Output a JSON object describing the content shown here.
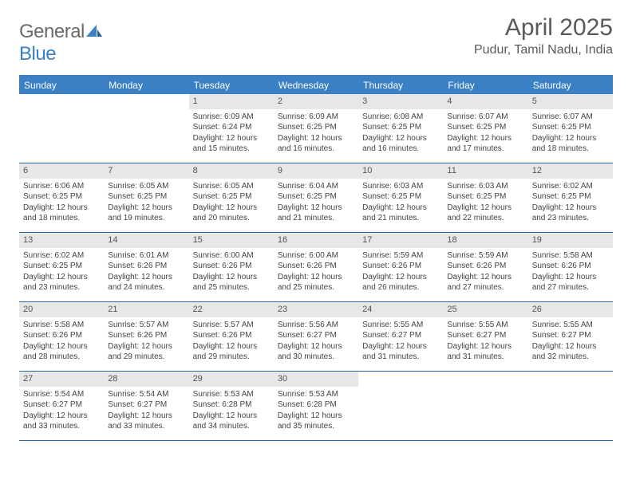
{
  "brand": {
    "part1": "General",
    "part2": "Blue"
  },
  "title": "April 2025",
  "location": "Pudur, Tamil Nadu, India",
  "colors": {
    "header_bg": "#3b7fc4",
    "row_border": "#2f6aa8",
    "daynum_bg": "#e7e7e7",
    "text": "#444444"
  },
  "daysOfWeek": [
    "Sunday",
    "Monday",
    "Tuesday",
    "Wednesday",
    "Thursday",
    "Friday",
    "Saturday"
  ],
  "weeks": [
    [
      {
        "n": "",
        "sunrise": "",
        "sunset": "",
        "daylight": ""
      },
      {
        "n": "",
        "sunrise": "",
        "sunset": "",
        "daylight": ""
      },
      {
        "n": "1",
        "sunrise": "Sunrise: 6:09 AM",
        "sunset": "Sunset: 6:24 PM",
        "daylight": "Daylight: 12 hours and 15 minutes."
      },
      {
        "n": "2",
        "sunrise": "Sunrise: 6:09 AM",
        "sunset": "Sunset: 6:25 PM",
        "daylight": "Daylight: 12 hours and 16 minutes."
      },
      {
        "n": "3",
        "sunrise": "Sunrise: 6:08 AM",
        "sunset": "Sunset: 6:25 PM",
        "daylight": "Daylight: 12 hours and 16 minutes."
      },
      {
        "n": "4",
        "sunrise": "Sunrise: 6:07 AM",
        "sunset": "Sunset: 6:25 PM",
        "daylight": "Daylight: 12 hours and 17 minutes."
      },
      {
        "n": "5",
        "sunrise": "Sunrise: 6:07 AM",
        "sunset": "Sunset: 6:25 PM",
        "daylight": "Daylight: 12 hours and 18 minutes."
      }
    ],
    [
      {
        "n": "6",
        "sunrise": "Sunrise: 6:06 AM",
        "sunset": "Sunset: 6:25 PM",
        "daylight": "Daylight: 12 hours and 18 minutes."
      },
      {
        "n": "7",
        "sunrise": "Sunrise: 6:05 AM",
        "sunset": "Sunset: 6:25 PM",
        "daylight": "Daylight: 12 hours and 19 minutes."
      },
      {
        "n": "8",
        "sunrise": "Sunrise: 6:05 AM",
        "sunset": "Sunset: 6:25 PM",
        "daylight": "Daylight: 12 hours and 20 minutes."
      },
      {
        "n": "9",
        "sunrise": "Sunrise: 6:04 AM",
        "sunset": "Sunset: 6:25 PM",
        "daylight": "Daylight: 12 hours and 21 minutes."
      },
      {
        "n": "10",
        "sunrise": "Sunrise: 6:03 AM",
        "sunset": "Sunset: 6:25 PM",
        "daylight": "Daylight: 12 hours and 21 minutes."
      },
      {
        "n": "11",
        "sunrise": "Sunrise: 6:03 AM",
        "sunset": "Sunset: 6:25 PM",
        "daylight": "Daylight: 12 hours and 22 minutes."
      },
      {
        "n": "12",
        "sunrise": "Sunrise: 6:02 AM",
        "sunset": "Sunset: 6:25 PM",
        "daylight": "Daylight: 12 hours and 23 minutes."
      }
    ],
    [
      {
        "n": "13",
        "sunrise": "Sunrise: 6:02 AM",
        "sunset": "Sunset: 6:25 PM",
        "daylight": "Daylight: 12 hours and 23 minutes."
      },
      {
        "n": "14",
        "sunrise": "Sunrise: 6:01 AM",
        "sunset": "Sunset: 6:26 PM",
        "daylight": "Daylight: 12 hours and 24 minutes."
      },
      {
        "n": "15",
        "sunrise": "Sunrise: 6:00 AM",
        "sunset": "Sunset: 6:26 PM",
        "daylight": "Daylight: 12 hours and 25 minutes."
      },
      {
        "n": "16",
        "sunrise": "Sunrise: 6:00 AM",
        "sunset": "Sunset: 6:26 PM",
        "daylight": "Daylight: 12 hours and 25 minutes."
      },
      {
        "n": "17",
        "sunrise": "Sunrise: 5:59 AM",
        "sunset": "Sunset: 6:26 PM",
        "daylight": "Daylight: 12 hours and 26 minutes."
      },
      {
        "n": "18",
        "sunrise": "Sunrise: 5:59 AM",
        "sunset": "Sunset: 6:26 PM",
        "daylight": "Daylight: 12 hours and 27 minutes."
      },
      {
        "n": "19",
        "sunrise": "Sunrise: 5:58 AM",
        "sunset": "Sunset: 6:26 PM",
        "daylight": "Daylight: 12 hours and 27 minutes."
      }
    ],
    [
      {
        "n": "20",
        "sunrise": "Sunrise: 5:58 AM",
        "sunset": "Sunset: 6:26 PM",
        "daylight": "Daylight: 12 hours and 28 minutes."
      },
      {
        "n": "21",
        "sunrise": "Sunrise: 5:57 AM",
        "sunset": "Sunset: 6:26 PM",
        "daylight": "Daylight: 12 hours and 29 minutes."
      },
      {
        "n": "22",
        "sunrise": "Sunrise: 5:57 AM",
        "sunset": "Sunset: 6:26 PM",
        "daylight": "Daylight: 12 hours and 29 minutes."
      },
      {
        "n": "23",
        "sunrise": "Sunrise: 5:56 AM",
        "sunset": "Sunset: 6:27 PM",
        "daylight": "Daylight: 12 hours and 30 minutes."
      },
      {
        "n": "24",
        "sunrise": "Sunrise: 5:55 AM",
        "sunset": "Sunset: 6:27 PM",
        "daylight": "Daylight: 12 hours and 31 minutes."
      },
      {
        "n": "25",
        "sunrise": "Sunrise: 5:55 AM",
        "sunset": "Sunset: 6:27 PM",
        "daylight": "Daylight: 12 hours and 31 minutes."
      },
      {
        "n": "26",
        "sunrise": "Sunrise: 5:55 AM",
        "sunset": "Sunset: 6:27 PM",
        "daylight": "Daylight: 12 hours and 32 minutes."
      }
    ],
    [
      {
        "n": "27",
        "sunrise": "Sunrise: 5:54 AM",
        "sunset": "Sunset: 6:27 PM",
        "daylight": "Daylight: 12 hours and 33 minutes."
      },
      {
        "n": "28",
        "sunrise": "Sunrise: 5:54 AM",
        "sunset": "Sunset: 6:27 PM",
        "daylight": "Daylight: 12 hours and 33 minutes."
      },
      {
        "n": "29",
        "sunrise": "Sunrise: 5:53 AM",
        "sunset": "Sunset: 6:28 PM",
        "daylight": "Daylight: 12 hours and 34 minutes."
      },
      {
        "n": "30",
        "sunrise": "Sunrise: 5:53 AM",
        "sunset": "Sunset: 6:28 PM",
        "daylight": "Daylight: 12 hours and 35 minutes."
      },
      {
        "n": "",
        "sunrise": "",
        "sunset": "",
        "daylight": ""
      },
      {
        "n": "",
        "sunrise": "",
        "sunset": "",
        "daylight": ""
      },
      {
        "n": "",
        "sunrise": "",
        "sunset": "",
        "daylight": ""
      }
    ]
  ]
}
